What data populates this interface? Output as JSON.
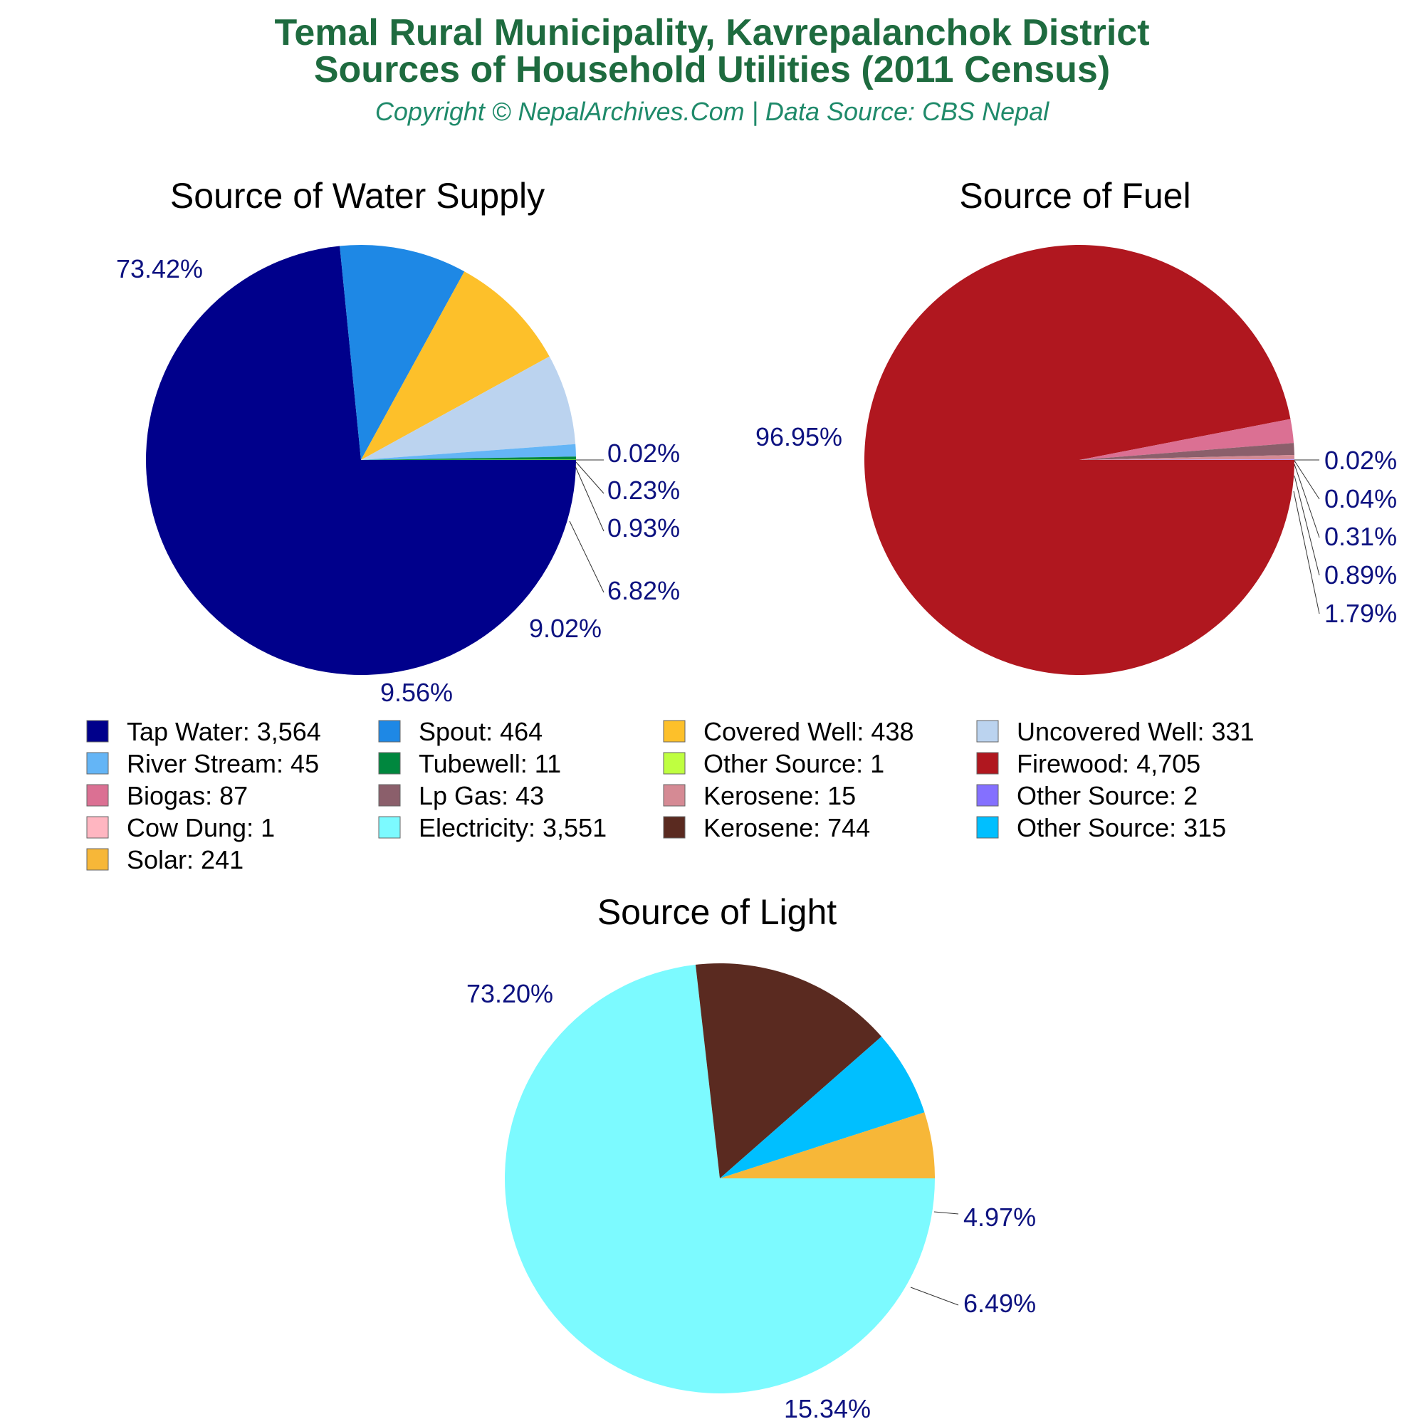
{
  "header": {
    "title_line1": "Temal Rural Municipality, Kavrepalanchok District",
    "title_line2": "Sources of Household Utilities (2011 Census)",
    "subtitle": "Copyright © NepalArchives.Com | Data Source: CBS Nepal"
  },
  "chart_data": [
    {
      "type": "pie",
      "title": "Source of Water Supply",
      "slices": [
        {
          "label": "Tap Water",
          "value": 3564,
          "percent_label": "73.42%",
          "color": "#00008b"
        },
        {
          "label": "Spout",
          "value": 464,
          "percent_label": "9.56%",
          "color": "#1e88e5"
        },
        {
          "label": "Covered Well",
          "value": 438,
          "percent_label": "9.02%",
          "color": "#fdc02a"
        },
        {
          "label": "Uncovered Well",
          "value": 331,
          "percent_label": "6.82%",
          "color": "#bbd3ef"
        },
        {
          "label": "River Stream",
          "value": 45,
          "percent_label": "0.93%",
          "color": "#64b5f6"
        },
        {
          "label": "Tubewell",
          "value": 11,
          "percent_label": "0.23%",
          "color": "#00873e"
        },
        {
          "label": "Other Source",
          "value": 1,
          "percent_label": "0.02%",
          "color": "#bfff40"
        }
      ]
    },
    {
      "type": "pie",
      "title": "Source of Fuel",
      "slices": [
        {
          "label": "Firewood",
          "value": 4705,
          "percent_label": "96.95%",
          "color": "#b0171f"
        },
        {
          "label": "Biogas",
          "value": 87,
          "percent_label": "1.79%",
          "color": "#db7093"
        },
        {
          "label": "Lp Gas",
          "value": 43,
          "percent_label": "0.89%",
          "color": "#8b5f6b"
        },
        {
          "label": "Kerosene",
          "value": 15,
          "percent_label": "0.31%",
          "color": "#d58a94"
        },
        {
          "label": "Other Source",
          "value": 2,
          "percent_label": "0.04%",
          "color": "#8470ff"
        },
        {
          "label": "Cow Dung",
          "value": 1,
          "percent_label": "0.02%",
          "color": "#ffb6c1"
        }
      ]
    },
    {
      "type": "pie",
      "title": "Source of Light",
      "slices": [
        {
          "label": "Electricity",
          "value": 3551,
          "percent_label": "73.20%",
          "color": "#7cfaff"
        },
        {
          "label": "Kerosene",
          "value": 744,
          "percent_label": "15.34%",
          "color": "#5a2a20"
        },
        {
          "label": "Other Source",
          "value": 315,
          "percent_label": "6.49%",
          "color": "#00bfff"
        },
        {
          "label": "Solar",
          "value": 241,
          "percent_label": "4.97%",
          "color": "#f7b738"
        }
      ]
    }
  ],
  "legend": [
    {
      "text": "Tap Water: 3,564",
      "color": "#00008b"
    },
    {
      "text": "Spout: 464",
      "color": "#1e88e5"
    },
    {
      "text": "Covered Well: 438",
      "color": "#fdc02a"
    },
    {
      "text": "Uncovered Well: 331",
      "color": "#bbd3ef"
    },
    {
      "text": "River Stream: 45",
      "color": "#64b5f6"
    },
    {
      "text": "Tubewell: 11",
      "color": "#00873e"
    },
    {
      "text": "Other Source: 1",
      "color": "#bfff40"
    },
    {
      "text": "Firewood: 4,705",
      "color": "#b0171f"
    },
    {
      "text": "Biogas: 87",
      "color": "#db7093"
    },
    {
      "text": "Lp Gas: 43",
      "color": "#8b5f6b"
    },
    {
      "text": "Kerosene: 15",
      "color": "#d58a94"
    },
    {
      "text": "Other Source: 2",
      "color": "#8470ff"
    },
    {
      "text": "Cow Dung: 1",
      "color": "#ffb6c1"
    },
    {
      "text": "Electricity: 3,551",
      "color": "#7cfaff"
    },
    {
      "text": "Kerosene: 744",
      "color": "#5a2a20"
    },
    {
      "text": "Other Source: 315",
      "color": "#00bfff"
    },
    {
      "text": "Solar: 241",
      "color": "#f7b738"
    }
  ]
}
